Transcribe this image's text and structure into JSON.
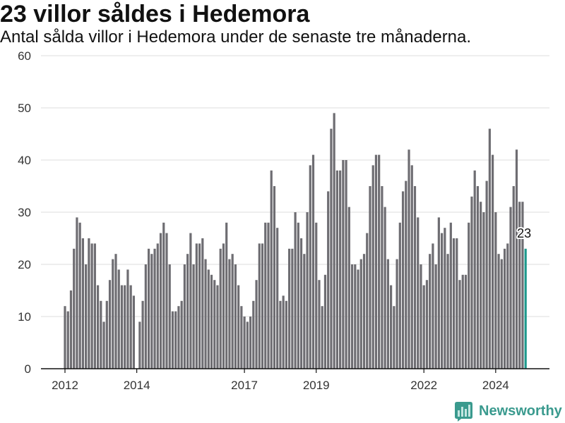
{
  "chart_data": {
    "type": "bar",
    "title": "23 villor såldes i Hedemora",
    "subtitle": "Antal sålda villor i Hedemora under de senaste tre månaderna.",
    "x": [
      "2012-01",
      "2012-02",
      "2012-03",
      "2012-04",
      "2012-05",
      "2012-06",
      "2012-07",
      "2012-08",
      "2012-09",
      "2012-10",
      "2012-11",
      "2012-12",
      "2013-01",
      "2013-02",
      "2013-03",
      "2013-04",
      "2013-05",
      "2013-06",
      "2013-07",
      "2013-08",
      "2013-09",
      "2013-10",
      "2013-11",
      "2013-12",
      "2014-01",
      "2014-02",
      "2014-03",
      "2014-04",
      "2014-05",
      "2014-06",
      "2014-07",
      "2014-08",
      "2014-09",
      "2014-10",
      "2014-11",
      "2014-12",
      "2015-01",
      "2015-02",
      "2015-03",
      "2015-04",
      "2015-05",
      "2015-06",
      "2015-07",
      "2015-08",
      "2015-09",
      "2015-10",
      "2015-11",
      "2015-12",
      "2016-01",
      "2016-02",
      "2016-03",
      "2016-04",
      "2016-05",
      "2016-06",
      "2016-07",
      "2016-08",
      "2016-09",
      "2016-10",
      "2016-11",
      "2016-12",
      "2017-01",
      "2017-02",
      "2017-03",
      "2017-04",
      "2017-05",
      "2017-06",
      "2017-07",
      "2017-08",
      "2017-09",
      "2017-10",
      "2017-11",
      "2017-12",
      "2018-01",
      "2018-02",
      "2018-03",
      "2018-04",
      "2018-05",
      "2018-06",
      "2018-07",
      "2018-08",
      "2018-09",
      "2018-10",
      "2018-11",
      "2018-12",
      "2019-01",
      "2019-02",
      "2019-03",
      "2019-04",
      "2019-05",
      "2019-06",
      "2019-07",
      "2019-08",
      "2019-09",
      "2019-10",
      "2019-11",
      "2019-12",
      "2020-01",
      "2020-02",
      "2020-03",
      "2020-04",
      "2020-05",
      "2020-06",
      "2020-07",
      "2020-08",
      "2020-09",
      "2020-10",
      "2020-11",
      "2020-12",
      "2021-01",
      "2021-02",
      "2021-03",
      "2021-04",
      "2021-05",
      "2021-06",
      "2021-07",
      "2021-08",
      "2021-09",
      "2021-10",
      "2021-11",
      "2021-12",
      "2022-01",
      "2022-02",
      "2022-03",
      "2022-04",
      "2022-05",
      "2022-06",
      "2022-07",
      "2022-08",
      "2022-09",
      "2022-10",
      "2022-11",
      "2022-12",
      "2023-01",
      "2023-02",
      "2023-03",
      "2023-04",
      "2023-05",
      "2023-06",
      "2023-07",
      "2023-08",
      "2023-09",
      "2023-10",
      "2023-11",
      "2023-12",
      "2024-01",
      "2024-02",
      "2024-03",
      "2024-04",
      "2024-05",
      "2024-06",
      "2024-07",
      "2024-08",
      "2024-09",
      "2024-10",
      "2024-11"
    ],
    "values": [
      12,
      11,
      15,
      23,
      29,
      28,
      25,
      20,
      25,
      24,
      24,
      16,
      13,
      9,
      13,
      17,
      21,
      22,
      19,
      16,
      16,
      19,
      16,
      14,
      null,
      9,
      13,
      20,
      23,
      22,
      23,
      24,
      26,
      28,
      26,
      20,
      11,
      11,
      12,
      13,
      20,
      22,
      26,
      20,
      24,
      24,
      25,
      21,
      19,
      18,
      17,
      16,
      23,
      24,
      28,
      21,
      22,
      20,
      16,
      12,
      10,
      9,
      10,
      13,
      17,
      24,
      24,
      28,
      28,
      38,
      35,
      27,
      13,
      14,
      13,
      23,
      23,
      30,
      28,
      25,
      22,
      30,
      39,
      41,
      28,
      17,
      12,
      18,
      34,
      46,
      49,
      38,
      38,
      40,
      40,
      31,
      20,
      20,
      19,
      21,
      22,
      26,
      35,
      39,
      41,
      41,
      35,
      31,
      21,
      16,
      12,
      21,
      28,
      34,
      36,
      42,
      39,
      35,
      29,
      20,
      16,
      17,
      22,
      24,
      20,
      29,
      26,
      27,
      22,
      28,
      25,
      25,
      17,
      18,
      18,
      28,
      33,
      38,
      35,
      32,
      30,
      36,
      46,
      41,
      30,
      22,
      21,
      23,
      24,
      31,
      35,
      42,
      32,
      32,
      23
    ],
    "ylim": [
      0,
      60
    ],
    "yticks": [
      0,
      10,
      20,
      30,
      40,
      50,
      60
    ],
    "xticks": [
      "2012",
      "2014",
      "2017",
      "2019",
      "2022",
      "2024"
    ],
    "grid": true,
    "highlight": {
      "x": "2024-11",
      "value": 23
    },
    "colors": {
      "bar": "#6e6d72",
      "highlight": "#1e998c",
      "grid": "#dedede",
      "axis": "#111111"
    }
  },
  "logo": {
    "text": "Newsworthy",
    "icon": "bar-chart-bubble-icon",
    "color": "#3a9a8e",
    "icon_bar_color": "#c4e6e1"
  }
}
